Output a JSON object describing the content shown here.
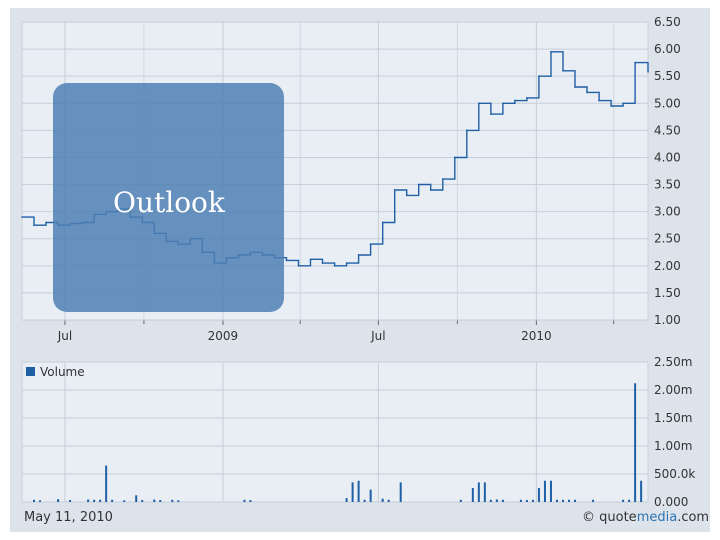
{
  "chart_data": [
    {
      "type": "line",
      "x_tick_labels": [
        "Jul",
        "2009",
        "Jul",
        "2010"
      ],
      "y_ticks": [
        "1.00",
        "1.50",
        "2.00",
        "2.50",
        "3.00",
        "3.50",
        "4.00",
        "4.50",
        "5.00",
        "5.50",
        "6.00",
        "6.50"
      ],
      "ylim": [
        1.0,
        6.5
      ],
      "x_range": [
        "2008-05-12",
        "2010-05-11"
      ],
      "grid": true,
      "series": [
        {
          "color": "#1f5fa6",
          "points": [
            [
              "2008-05-12",
              2.9
            ],
            [
              "2008-05-26",
              2.75
            ],
            [
              "2008-06-09",
              2.8
            ],
            [
              "2008-06-23",
              2.75
            ],
            [
              "2008-07-07",
              2.78
            ],
            [
              "2008-07-21",
              2.8
            ],
            [
              "2008-08-04",
              2.95
            ],
            [
              "2008-08-18",
              3.0
            ],
            [
              "2008-09-01",
              3.05
            ],
            [
              "2008-09-15",
              2.9
            ],
            [
              "2008-09-29",
              2.8
            ],
            [
              "2008-10-13",
              2.6
            ],
            [
              "2008-10-27",
              2.45
            ],
            [
              "2008-11-10",
              2.4
            ],
            [
              "2008-11-24",
              2.5
            ],
            [
              "2008-12-08",
              2.25
            ],
            [
              "2008-12-22",
              2.05
            ],
            [
              "2009-01-05",
              2.15
            ],
            [
              "2009-01-19",
              2.2
            ],
            [
              "2009-02-02",
              2.25
            ],
            [
              "2009-02-16",
              2.2
            ],
            [
              "2009-03-02",
              2.15
            ],
            [
              "2009-03-16",
              2.1
            ],
            [
              "2009-03-30",
              2.0
            ],
            [
              "2009-04-13",
              2.12
            ],
            [
              "2009-04-27",
              2.05
            ],
            [
              "2009-05-11",
              2.0
            ],
            [
              "2009-05-25",
              2.05
            ],
            [
              "2009-06-08",
              2.2
            ],
            [
              "2009-06-22",
              2.4
            ],
            [
              "2009-07-06",
              2.8
            ],
            [
              "2009-07-20",
              3.4
            ],
            [
              "2009-08-03",
              3.3
            ],
            [
              "2009-08-17",
              3.5
            ],
            [
              "2009-08-31",
              3.4
            ],
            [
              "2009-09-14",
              3.6
            ],
            [
              "2009-09-28",
              4.0
            ],
            [
              "2009-10-12",
              4.5
            ],
            [
              "2009-10-26",
              5.0
            ],
            [
              "2009-11-09",
              4.8
            ],
            [
              "2009-11-23",
              5.0
            ],
            [
              "2009-12-07",
              5.05
            ],
            [
              "2009-12-21",
              5.1
            ],
            [
              "2010-01-04",
              5.5
            ],
            [
              "2010-01-18",
              5.95
            ],
            [
              "2010-02-01",
              5.6
            ],
            [
              "2010-02-15",
              5.3
            ],
            [
              "2010-03-01",
              5.2
            ],
            [
              "2010-03-15",
              5.05
            ],
            [
              "2010-03-29",
              4.95
            ],
            [
              "2010-04-12",
              5.0
            ],
            [
              "2010-04-26",
              5.75
            ],
            [
              "2010-05-11",
              5.58
            ]
          ]
        }
      ]
    },
    {
      "type": "bar",
      "legend": [
        "Volume"
      ],
      "y_ticks": [
        "0.000",
        "500.0k",
        "1.00m",
        "1.50m",
        "2.00m",
        "2.50m"
      ],
      "ylim": [
        0,
        2500000
      ],
      "series": [
        {
          "name": "Volume",
          "color": "#1f5fa6",
          "points": [
            [
              "2008-05-26",
              40000
            ],
            [
              "2008-06-02",
              30000
            ],
            [
              "2008-06-23",
              50000
            ],
            [
              "2008-07-07",
              35000
            ],
            [
              "2008-07-28",
              45000
            ],
            [
              "2008-08-04",
              40000
            ],
            [
              "2008-08-11",
              40000
            ],
            [
              "2008-08-18",
              650000
            ],
            [
              "2008-08-25",
              40000
            ],
            [
              "2008-09-08",
              30000
            ],
            [
              "2008-09-22",
              120000
            ],
            [
              "2008-09-29",
              35000
            ],
            [
              "2008-10-13",
              45000
            ],
            [
              "2008-10-20",
              35000
            ],
            [
              "2008-11-03",
              40000
            ],
            [
              "2008-11-10",
              30000
            ],
            [
              "2009-01-26",
              40000
            ],
            [
              "2009-02-02",
              35000
            ],
            [
              "2009-05-25",
              70000
            ],
            [
              "2009-06-01",
              350000
            ],
            [
              "2009-06-08",
              380000
            ],
            [
              "2009-06-15",
              40000
            ],
            [
              "2009-06-22",
              220000
            ],
            [
              "2009-07-06",
              60000
            ],
            [
              "2009-07-13",
              40000
            ],
            [
              "2009-07-27",
              350000
            ],
            [
              "2009-10-05",
              40000
            ],
            [
              "2009-10-19",
              250000
            ],
            [
              "2009-10-26",
              350000
            ],
            [
              "2009-11-02",
              350000
            ],
            [
              "2009-11-09",
              40000
            ],
            [
              "2009-11-16",
              45000
            ],
            [
              "2009-11-23",
              40000
            ],
            [
              "2009-12-14",
              40000
            ],
            [
              "2009-12-21",
              35000
            ],
            [
              "2009-12-28",
              40000
            ],
            [
              "2010-01-04",
              250000
            ],
            [
              "2010-01-11",
              380000
            ],
            [
              "2010-01-18",
              380000
            ],
            [
              "2010-01-25",
              40000
            ],
            [
              "2010-02-01",
              40000
            ],
            [
              "2010-02-08",
              40000
            ],
            [
              "2010-02-15",
              40000
            ],
            [
              "2010-03-08",
              40000
            ],
            [
              "2010-04-12",
              40000
            ],
            [
              "2010-04-19",
              40000
            ],
            [
              "2010-04-26",
              2120000
            ],
            [
              "2010-05-03",
              380000
            ]
          ]
        }
      ]
    }
  ],
  "overlay": {
    "label": "Outlook"
  },
  "footer": {
    "date": "May 11, 2010",
    "brand_prefix": "© quote",
    "brand_accent": "media",
    "brand_suffix": ".com"
  }
}
